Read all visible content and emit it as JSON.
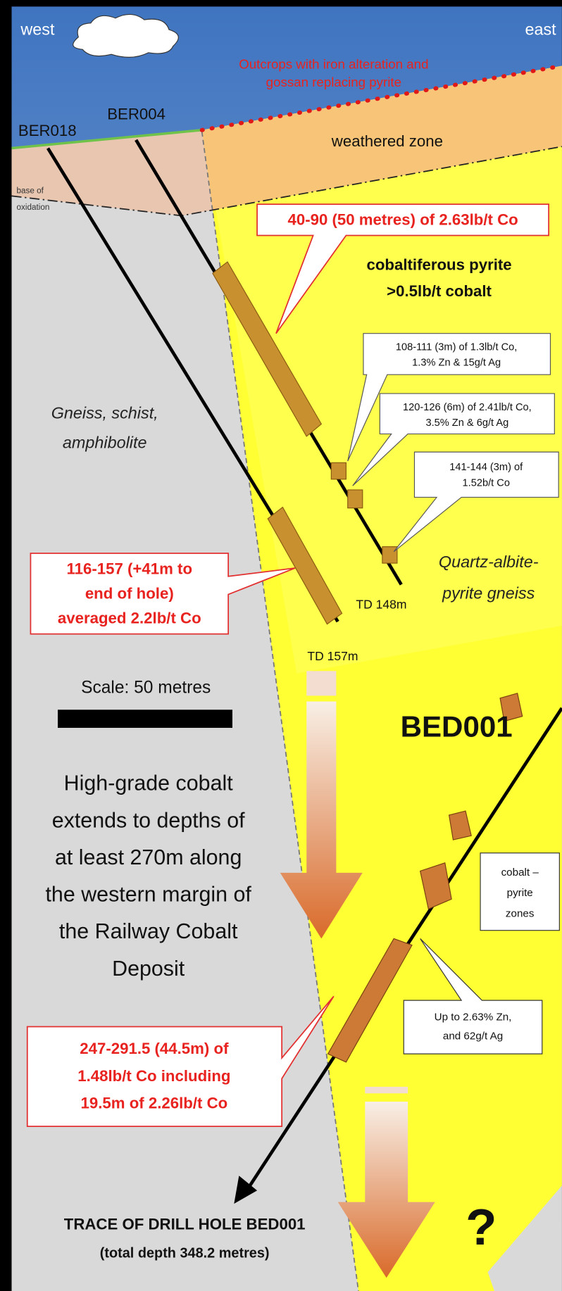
{
  "header": {
    "west": "west",
    "east": "east"
  },
  "outcrops": [
    "Outcrops with iron alteration and",
    "gossan replacing pyrite"
  ],
  "holes": {
    "ber018": "BER018",
    "ber004": "BER004",
    "bed001": "BED001"
  },
  "zones": {
    "weathered": "weathered zone",
    "oxidation": [
      "base of",
      "oxidation"
    ],
    "cobaltiferous": [
      "cobaltiferous pyrite",
      ">0.5lb/t cobalt"
    ],
    "gneiss": [
      "Gneiss, schist,",
      "amphibolite"
    ],
    "quartz": [
      "Quartz-albite-",
      "pyrite gneiss"
    ]
  },
  "callouts": {
    "c4090": "40-90 (50 metres) of 2.63lb/t Co",
    "c108": [
      "108-111 (3m) of 1.3lb/t Co,",
      "1.3% Zn & 15g/t Ag"
    ],
    "c120": [
      "120-126 (6m) of 2.41lb/t Co,",
      "3.5% Zn & 6g/t Ag"
    ],
    "c141": [
      "141-144 (3m) of",
      "1.52b/t Co"
    ],
    "c116": [
      "116-157 (+41m to",
      "end of hole)",
      "averaged 2.2lb/t Co"
    ],
    "pyrite": [
      "cobalt –",
      "pyrite",
      "zones"
    ],
    "zn": [
      "Up to 2.63% Zn,",
      "and 62g/t Ag"
    ],
    "c247": [
      "247-291.5 (44.5m) of",
      "1.48lb/t Co including",
      "19.5m of 2.26lb/t Co"
    ]
  },
  "depths": {
    "td148": "TD 148m",
    "td157": "TD 157m"
  },
  "scale": "Scale: 50 metres",
  "summary": [
    "High-grade cobalt",
    "extends to depths of",
    "at least 270m along",
    "the western margin of",
    "the Railway Cobalt",
    "Deposit"
  ],
  "trace": [
    "TRACE OF DRILL HOLE BED001",
    "(total depth 348.2 metres)"
  ],
  "question": "?"
}
